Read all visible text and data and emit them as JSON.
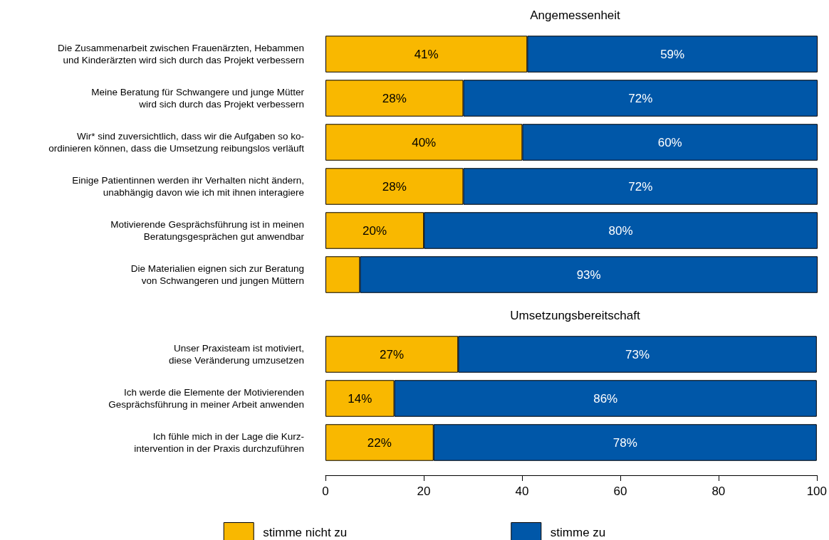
{
  "chart_data": [
    {
      "type": "bar",
      "title": "Angemessenheit",
      "orientation": "horizontal",
      "stacked": true,
      "categories": [
        "Die Zusammenarbeit zwischen Frauenärzten, Hebammen\nund Kinderärzten wird sich durch das Projekt verbessern",
        "Meine Beratung für Schwangere und junge Mütter\nwird sich durch das Projekt verbessern",
        "Wir* sind zuversichtlich, dass wir die Aufgaben so ko-\nordinieren können, dass die Umsetzung reibungslos verläuft",
        "Einige Patientinnen werden ihr Verhalten nicht ändern,\nunabhängig davon wie ich mit ihnen interagiere",
        "Motivierende Gesprächsführung ist in meinen\nBeratungsgesprächen gut anwendbar",
        "Die Materialien eignen sich zur Beratung\nvon Schwangeren und jungen Müttern"
      ],
      "series": [
        {
          "color": "#f9b800",
          "values": [
            41,
            28,
            40,
            28,
            20,
            7
          ],
          "value_labels": [
            "41%",
            "28%",
            "40%",
            "28%",
            "20%",
            null
          ]
        },
        {
          "color": "#0057a8",
          "values": [
            59,
            72,
            60,
            72,
            80,
            93
          ],
          "value_labels": [
            "59%",
            "72%",
            "60%",
            "72%",
            "80%",
            "93%"
          ]
        }
      ],
      "xlim": [
        0,
        100
      ],
      "xticks": [
        0,
        20,
        40,
        60,
        80,
        100
      ],
      "tick_labels": false
    },
    {
      "type": "bar",
      "title": "Umsetzungsbereitschaft",
      "orientation": "horizontal",
      "stacked": true,
      "categories": [
        "Unser Praxisteam ist motiviert,\ndiese Veränderung umzusetzen",
        "Ich werde die Elemente der Motivierenden\nGesprächsführung in meiner Arbeit anwenden",
        "Ich fühle mich in der Lage die Kurz-\nintervention in der Praxis durchzuführen"
      ],
      "series": [
        {
          "name": "stimme nicht zu",
          "color": "#f9b800",
          "values": [
            27,
            14,
            22
          ],
          "value_labels": [
            "27%",
            "14%",
            "22%"
          ]
        },
        {
          "name": "stimme zu",
          "color": "#0057a8",
          "values": [
            73,
            86,
            78
          ],
          "value_labels": [
            "73%",
            "86%",
            "78%"
          ]
        }
      ],
      "xlim": [
        0,
        100
      ],
      "xticks": [
        0,
        20,
        40,
        60,
        80,
        100
      ],
      "legend": "bottom"
    }
  ]
}
